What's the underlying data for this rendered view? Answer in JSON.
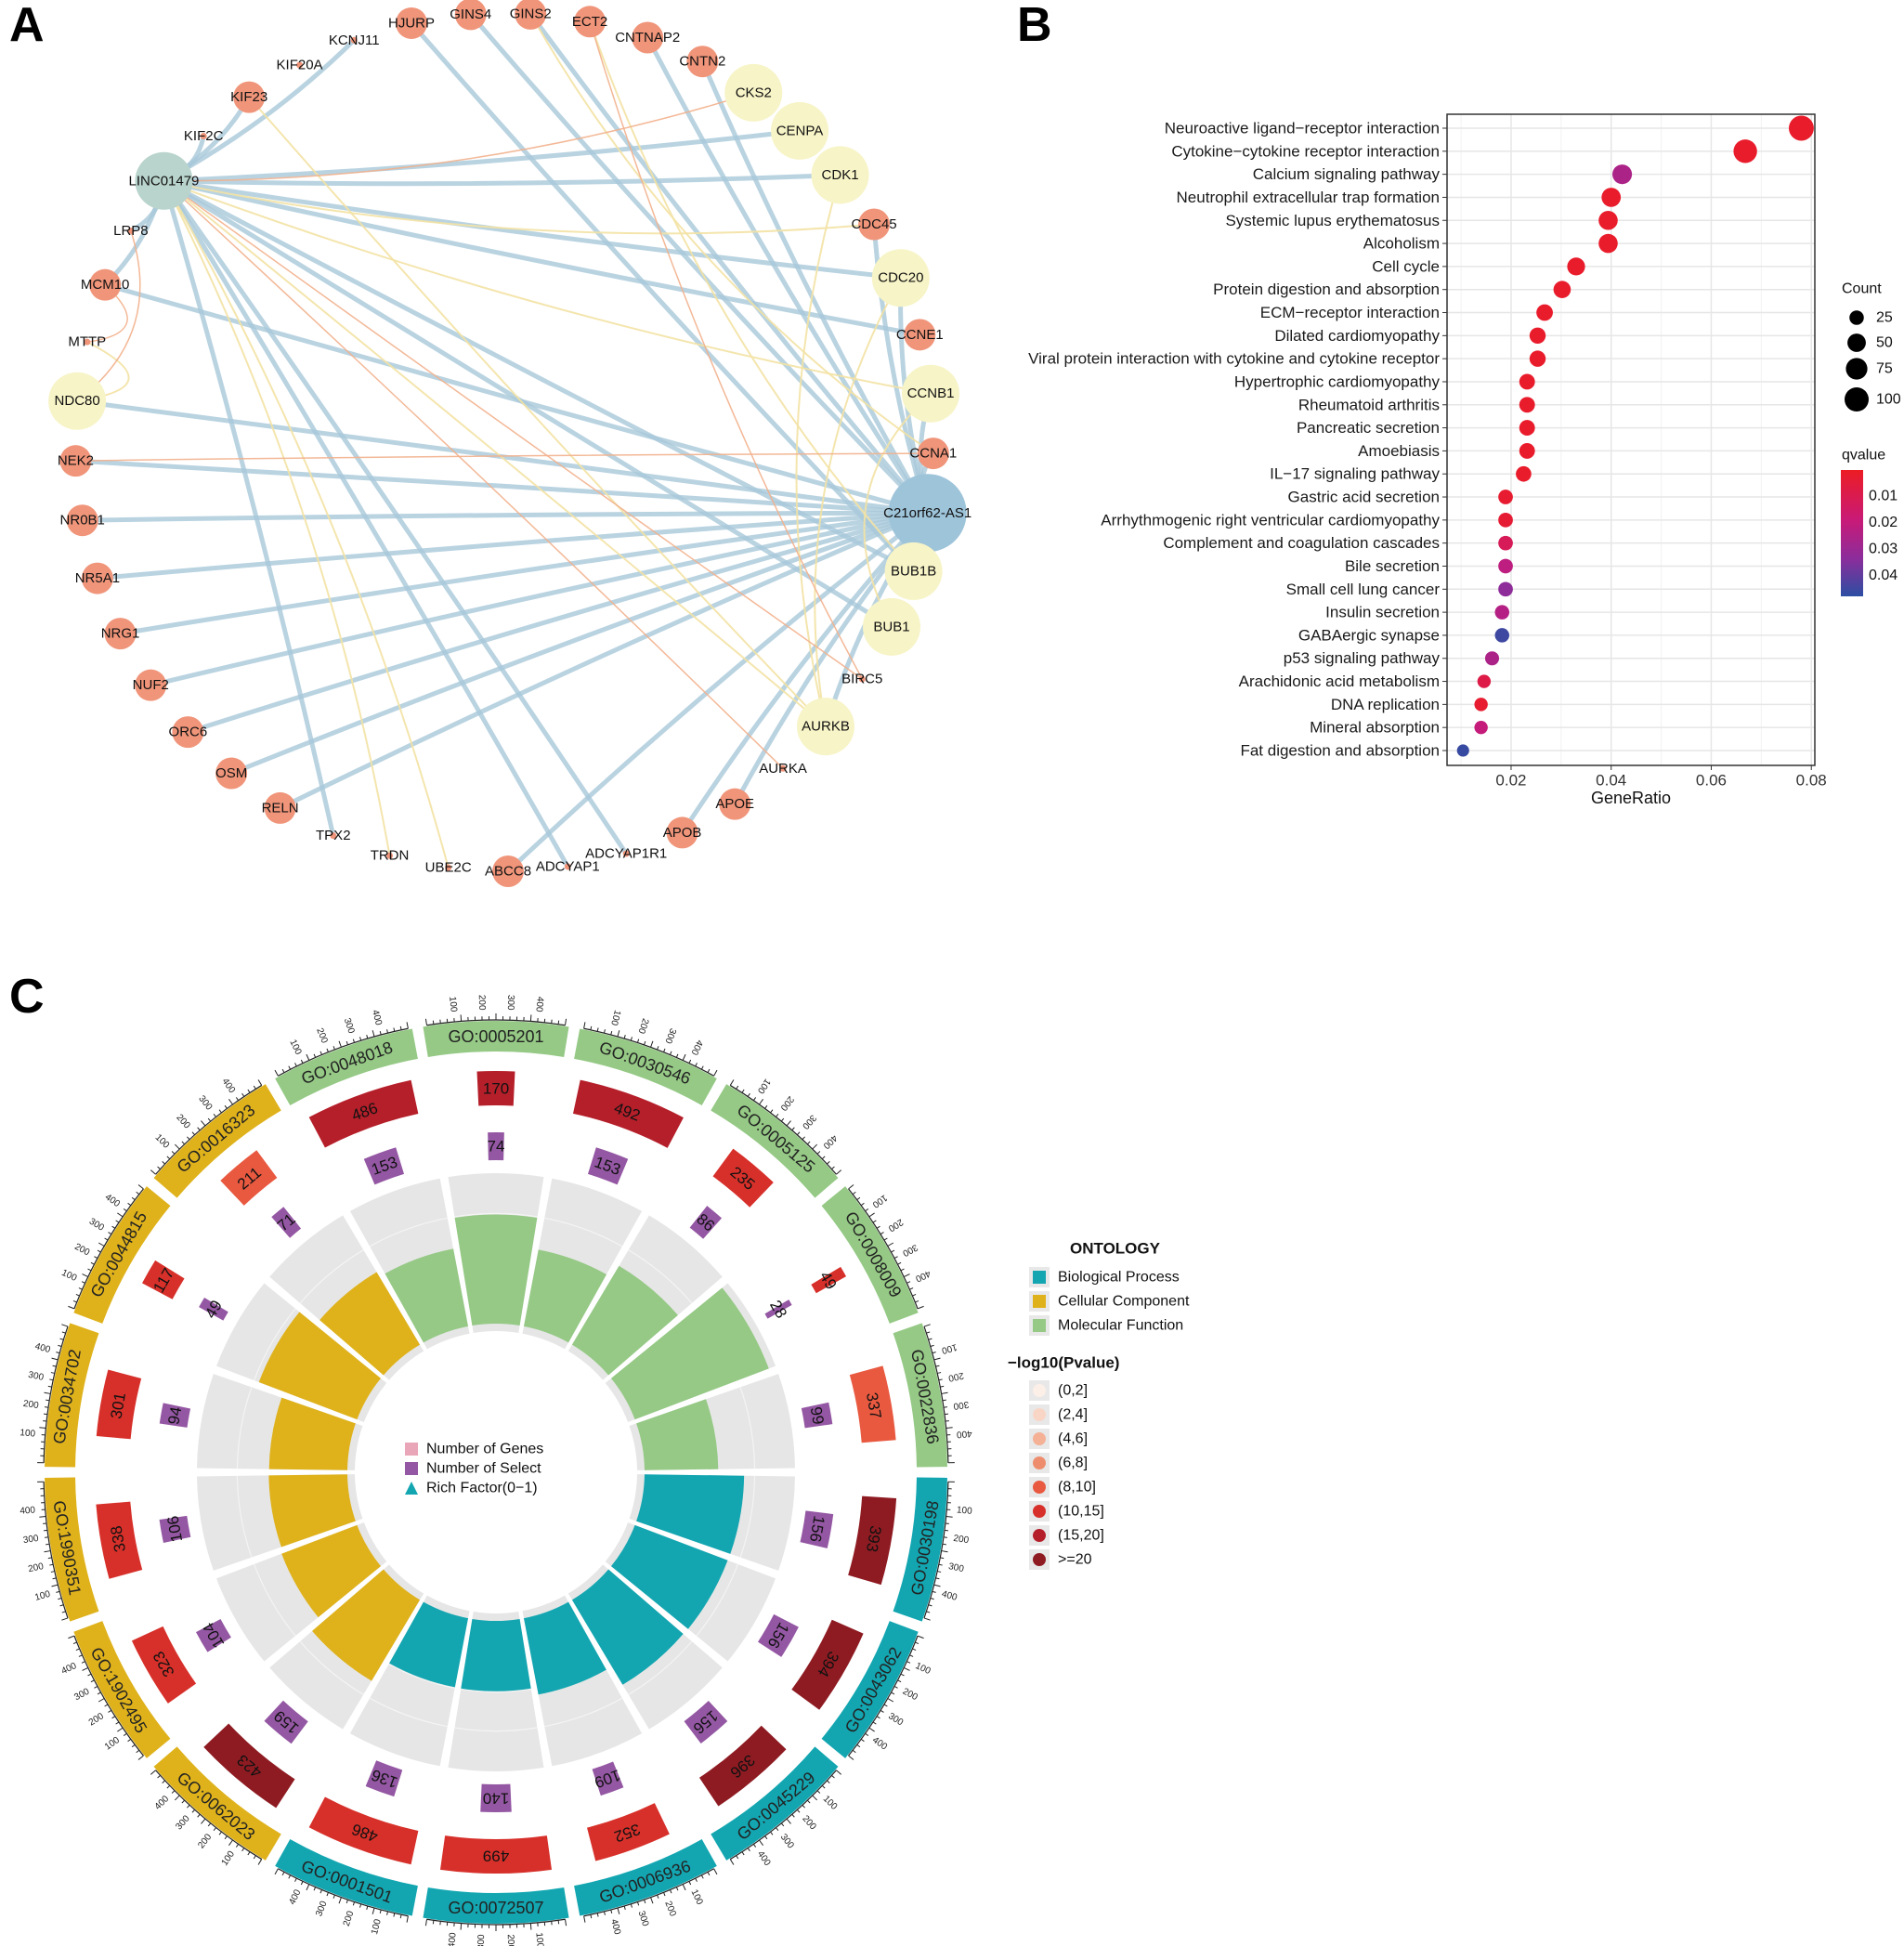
{
  "panels": {
    "a": "A",
    "b": "B",
    "c": "C"
  },
  "chart_data": [
    {
      "type": "network",
      "title": "A",
      "node_types": {
        "gene": "#f0957a",
        "hub": "#f7f4c7",
        "minor": "#f0957a",
        "lnc1": "#9ec4da",
        "lnc2": "#b9d4cc"
      },
      "edge_colors": {
        "blue": "#a8c8d9",
        "yellow": "#f3e2a4",
        "orange": "#f2b08c"
      },
      "nodes": [
        {
          "label": "HJURP",
          "type": "gene"
        },
        {
          "label": "GINS4",
          "type": "gene"
        },
        {
          "label": "GINS2",
          "type": "gene"
        },
        {
          "label": "ECT2",
          "type": "gene"
        },
        {
          "label": "CNTNAP2",
          "type": "gene"
        },
        {
          "label": "CNTN2",
          "type": "gene"
        },
        {
          "label": "CKS2",
          "type": "hub"
        },
        {
          "label": "CENPA",
          "type": "hub"
        },
        {
          "label": "CDK1",
          "type": "hub"
        },
        {
          "label": "CDC45",
          "type": "gene"
        },
        {
          "label": "CDC20",
          "type": "hub"
        },
        {
          "label": "CCNE1",
          "type": "gene"
        },
        {
          "label": "CCNB1",
          "type": "hub"
        },
        {
          "label": "CCNA1",
          "type": "gene"
        },
        {
          "label": "C21orf62-AS1",
          "type": "lnc1"
        },
        {
          "label": "BUB1B",
          "type": "hub"
        },
        {
          "label": "BUB1",
          "type": "hub"
        },
        {
          "label": "BIRC5",
          "type": "minor"
        },
        {
          "label": "AURKB",
          "type": "hub"
        },
        {
          "label": "AURKA",
          "type": "minor"
        },
        {
          "label": "APOE",
          "type": "gene"
        },
        {
          "label": "APOB",
          "type": "gene"
        },
        {
          "label": "ADCYAP1R1",
          "type": "minor"
        },
        {
          "label": "ADCYAP1",
          "type": "minor"
        },
        {
          "label": "ABCC8",
          "type": "gene"
        },
        {
          "label": "UBE2C",
          "type": "minor"
        },
        {
          "label": "TRDN",
          "type": "minor"
        },
        {
          "label": "TPX2",
          "type": "minor"
        },
        {
          "label": "RELN",
          "type": "gene"
        },
        {
          "label": "OSM",
          "type": "gene"
        },
        {
          "label": "ORC6",
          "type": "gene"
        },
        {
          "label": "NUF2",
          "type": "gene"
        },
        {
          "label": "NRG1",
          "type": "gene"
        },
        {
          "label": "NR5A1",
          "type": "gene"
        },
        {
          "label": "NR0B1",
          "type": "gene"
        },
        {
          "label": "NEK2",
          "type": "gene"
        },
        {
          "label": "NDC80",
          "type": "hub"
        },
        {
          "label": "MTTP",
          "type": "minor"
        },
        {
          "label": "MCM10",
          "type": "gene"
        },
        {
          "label": "LRP8",
          "type": "minor"
        },
        {
          "label": "LINC01479",
          "type": "lnc2"
        },
        {
          "label": "KIF2C",
          "type": "minor"
        },
        {
          "label": "KIF23",
          "type": "gene"
        },
        {
          "label": "KIF20A",
          "type": "minor"
        },
        {
          "label": "KCNJ11",
          "type": "minor"
        }
      ],
      "edges": [
        [
          "C21orf62-AS1",
          "GINS4",
          "blue"
        ],
        [
          "C21orf62-AS1",
          "GINS2",
          "blue"
        ],
        [
          "C21orf62-AS1",
          "CNTNAP2",
          "blue"
        ],
        [
          "C21orf62-AS1",
          "CNTN2",
          "blue"
        ],
        [
          "C21orf62-AS1",
          "CDC45",
          "blue"
        ],
        [
          "C21orf62-AS1",
          "CDC20",
          "blue"
        ],
        [
          "C21orf62-AS1",
          "CCNB1",
          "blue"
        ],
        [
          "C21orf62-AS1",
          "CCNA1",
          "blue"
        ],
        [
          "C21orf62-AS1",
          "NDC80",
          "blue"
        ],
        [
          "C21orf62-AS1",
          "NEK2",
          "blue"
        ],
        [
          "C21orf62-AS1",
          "NR0B1",
          "blue"
        ],
        [
          "C21orf62-AS1",
          "NR5A1",
          "blue"
        ],
        [
          "C21orf62-AS1",
          "NRG1",
          "blue"
        ],
        [
          "C21orf62-AS1",
          "NUF2",
          "blue"
        ],
        [
          "C21orf62-AS1",
          "ORC6",
          "blue"
        ],
        [
          "C21orf62-AS1",
          "OSM",
          "blue"
        ],
        [
          "C21orf62-AS1",
          "RELN",
          "blue"
        ],
        [
          "C21orf62-AS1",
          "ABCC8",
          "blue"
        ],
        [
          "C21orf62-AS1",
          "APOB",
          "blue"
        ],
        [
          "C21orf62-AS1",
          "APOE",
          "blue"
        ],
        [
          "C21orf62-AS1",
          "MCM10",
          "blue"
        ],
        [
          "C21orf62-AS1",
          "BUB1B",
          "blue"
        ],
        [
          "C21orf62-AS1",
          "AURKB",
          "blue"
        ],
        [
          "HJURP",
          "BUB1B",
          "blue"
        ],
        [
          "LINC01479",
          "CDK1",
          "blue"
        ],
        [
          "LINC01479",
          "CDC20",
          "blue"
        ],
        [
          "LINC01479",
          "CENPA",
          "blue"
        ],
        [
          "LINC01479",
          "BUB1",
          "blue"
        ],
        [
          "LINC01479",
          "TPX2",
          "blue"
        ],
        [
          "LINC01479",
          "ADCYAP1",
          "blue"
        ],
        [
          "LINC01479",
          "ADCYAP1R1",
          "blue"
        ],
        [
          "LINC01479",
          "KIF23",
          "blue"
        ],
        [
          "LINC01479",
          "KCNJ11",
          "blue"
        ],
        [
          "LINC01479",
          "MCM10",
          "blue"
        ],
        [
          "LINC01479",
          "LRP8",
          "blue"
        ],
        [
          "LINC01479",
          "KIF2C",
          "blue"
        ],
        [
          "LINC01479",
          "BUB1B",
          "blue"
        ],
        [
          "LINC01479",
          "CCNE1",
          "blue"
        ],
        [
          "LINC01479",
          "UBE2C",
          "yellow"
        ],
        [
          "LINC01479",
          "TRDN",
          "yellow"
        ],
        [
          "LINC01479",
          "AURKB",
          "yellow"
        ],
        [
          "LINC01479",
          "CCNB1",
          "yellow"
        ],
        [
          "LINC01479",
          "CDC45",
          "yellow"
        ],
        [
          "KIF23",
          "AURKB",
          "yellow"
        ],
        [
          "ECT2",
          "BUB1B",
          "yellow"
        ],
        [
          "CDK1",
          "AURKB",
          "yellow"
        ],
        [
          "CDC20",
          "AURKB",
          "yellow"
        ],
        [
          "BUB1",
          "CCNB1",
          "yellow"
        ],
        [
          "MTTP",
          "NDC80",
          "yellow"
        ],
        [
          "GINS2",
          "CCNA1",
          "yellow"
        ],
        [
          "LINC01479",
          "CKS2",
          "orange"
        ],
        [
          "LINC01479",
          "BIRC5",
          "orange"
        ],
        [
          "LINC01479",
          "AURKA",
          "orange"
        ],
        [
          "ECT2",
          "BIRC5",
          "orange"
        ],
        [
          "NEK2",
          "CCNA1",
          "orange"
        ],
        [
          "MCM10",
          "MTTP",
          "orange"
        ],
        [
          "LRP8",
          "NDC80",
          "orange"
        ]
      ]
    },
    {
      "type": "scatter",
      "title": "B",
      "xlabel": "GeneRatio",
      "ylabel": "",
      "xlim": [
        0.0072,
        0.0807
      ],
      "xticks": [
        "0.02",
        "0.04",
        "0.06",
        "0.08"
      ],
      "xtick_values": [
        0.02,
        0.04,
        0.06,
        0.08
      ],
      "grid": true,
      "size_legend": {
        "title": "Count",
        "values": [
          25,
          50,
          75,
          100
        ],
        "labels": [
          "25",
          "50",
          "75",
          "100"
        ]
      },
      "color_legend": {
        "title": "qvalue",
        "range": [
          0.0003,
          0.0478
        ],
        "ticks": [
          "0.01",
          "0.02",
          "0.03",
          "0.04"
        ],
        "tick_values": [
          0.01,
          0.02,
          0.03,
          0.04
        ],
        "low_color": "#ec1c24",
        "high_color": "#2b4ea2"
      },
      "categories": [
        "Neuroactive ligand−receptor interaction",
        "Cytokine−cytokine receptor interaction",
        "Calcium signaling pathway",
        "Neutrophil extracellular trap formation",
        "Systemic lupus erythematosus",
        "Alcoholism",
        "Cell cycle",
        "Protein digestion and absorption",
        "ECM−receptor interaction",
        "Dilated cardiomyopathy",
        "Viral protein interaction with cytokine and cytokine receptor",
        "Hypertrophic cardiomyopathy",
        "Rheumatoid arthritis",
        "Pancreatic secretion",
        "Amoebiasis",
        "IL−17 signaling pathway",
        "Gastric acid secretion",
        "Arrhythmogenic right ventricular cardiomyopathy",
        "Complement and coagulation cascades",
        "Bile secretion",
        "Small cell lung cancer",
        "Insulin secretion",
        "GABAergic synapse",
        "p53 signaling pathway",
        "Arachidonic acid metabolism",
        "DNA replication",
        "Mineral absorption",
        "Fat digestion and absorption"
      ],
      "gene_ratio": [
        0.078,
        0.0668,
        0.0422,
        0.04,
        0.0394,
        0.0394,
        0.033,
        0.0302,
        0.0267,
        0.0253,
        0.0253,
        0.0232,
        0.0232,
        0.0232,
        0.0232,
        0.0225,
        0.0189,
        0.0189,
        0.0189,
        0.0189,
        0.0189,
        0.0182,
        0.0182,
        0.0162,
        0.0146,
        0.014,
        0.014,
        0.0104
      ],
      "count": [
        109,
        94,
        59,
        56,
        55,
        55,
        46,
        42,
        37,
        35,
        35,
        32,
        32,
        32,
        32,
        31,
        26,
        26,
        26,
        26,
        26,
        25,
        25,
        23,
        20,
        20,
        20,
        15
      ],
      "qvalue": [
        0.002,
        0.002,
        0.026,
        0.002,
        0.002,
        0.002,
        0.002,
        0.002,
        0.002,
        0.002,
        0.002,
        0.002,
        0.002,
        0.002,
        0.002,
        0.002,
        0.003,
        0.004,
        0.012,
        0.022,
        0.033,
        0.024,
        0.045,
        0.026,
        0.008,
        0.003,
        0.02,
        0.046
      ]
    },
    {
      "type": "bar",
      "title": "C",
      "layout": "circular",
      "scale_ticks": [
        "100",
        "200",
        "300",
        "400"
      ],
      "center_legend": [
        "Number of Genes",
        "Number of Select",
        "Rich Factor(0−1)"
      ],
      "ontology_legend": {
        "title": "ONTOLOGY",
        "items": [
          {
            "label": "Biological Process",
            "color": "#13a6b1"
          },
          {
            "label": "Cellular Component",
            "color": "#dfb21c"
          },
          {
            "label": "Molecular Function",
            "color": "#95c985"
          }
        ]
      },
      "pvalue_legend": {
        "title": "−log10(Pvalue)",
        "items": [
          {
            "label": "(0,2]",
            "color": "#fcefe8"
          },
          {
            "label": "(2,4]",
            "color": "#f9d5c6"
          },
          {
            "label": "(4,6]",
            "color": "#f4b196"
          },
          {
            "label": "(6,8]",
            "color": "#ee8d6e"
          },
          {
            "label": "(8,10]",
            "color": "#e85940"
          },
          {
            "label": "(10,15]",
            "color": "#d7302a"
          },
          {
            "label": "(15,20]",
            "color": "#b51f2a"
          },
          {
            "label": ">=20",
            "color": "#8e1b22"
          }
        ]
      },
      "select_color": "#9457a3",
      "terms": [
        {
          "id": "GO:0030198",
          "ontology": 0,
          "genes": 393,
          "select": 156,
          "pbin": 7
        },
        {
          "id": "GO:0043062",
          "ontology": 0,
          "genes": 394,
          "select": 156,
          "pbin": 7
        },
        {
          "id": "GO:0045229",
          "ontology": 0,
          "genes": 396,
          "select": 156,
          "pbin": 7
        },
        {
          "id": "GO:0006936",
          "ontology": 0,
          "genes": 352,
          "select": 109,
          "pbin": 5
        },
        {
          "id": "GO:0072507",
          "ontology": 0,
          "genes": 499,
          "select": 140,
          "pbin": 5
        },
        {
          "id": "GO:0001501",
          "ontology": 0,
          "genes": 486,
          "select": 136,
          "pbin": 5
        },
        {
          "id": "GO:0062023",
          "ontology": 1,
          "genes": 423,
          "select": 159,
          "pbin": 7
        },
        {
          "id": "GO:1902495",
          "ontology": 1,
          "genes": 323,
          "select": 104,
          "pbin": 5
        },
        {
          "id": "GO:1990351",
          "ontology": 1,
          "genes": 338,
          "select": 106,
          "pbin": 5
        },
        {
          "id": "GO:0034702",
          "ontology": 1,
          "genes": 301,
          "select": 94,
          "pbin": 5
        },
        {
          "id": "GO:0044815",
          "ontology": 1,
          "genes": 117,
          "select": 49,
          "pbin": 5
        },
        {
          "id": "GO:0016323",
          "ontology": 1,
          "genes": 211,
          "select": 71,
          "pbin": 4
        },
        {
          "id": "GO:0048018",
          "ontology": 2,
          "genes": 486,
          "select": 153,
          "pbin": 6
        },
        {
          "id": "GO:0005201",
          "ontology": 2,
          "genes": 170,
          "select": 74,
          "pbin": 6
        },
        {
          "id": "GO:0030546",
          "ontology": 2,
          "genes": 492,
          "select": 153,
          "pbin": 6
        },
        {
          "id": "GO:0005125",
          "ontology": 2,
          "genes": 235,
          "select": 86,
          "pbin": 5
        },
        {
          "id": "GO:0008009",
          "ontology": 2,
          "genes": 49,
          "select": 28,
          "pbin": 5
        },
        {
          "id": "GO:0022836",
          "ontology": 2,
          "genes": 337,
          "select": 99,
          "pbin": 4
        }
      ]
    }
  ]
}
